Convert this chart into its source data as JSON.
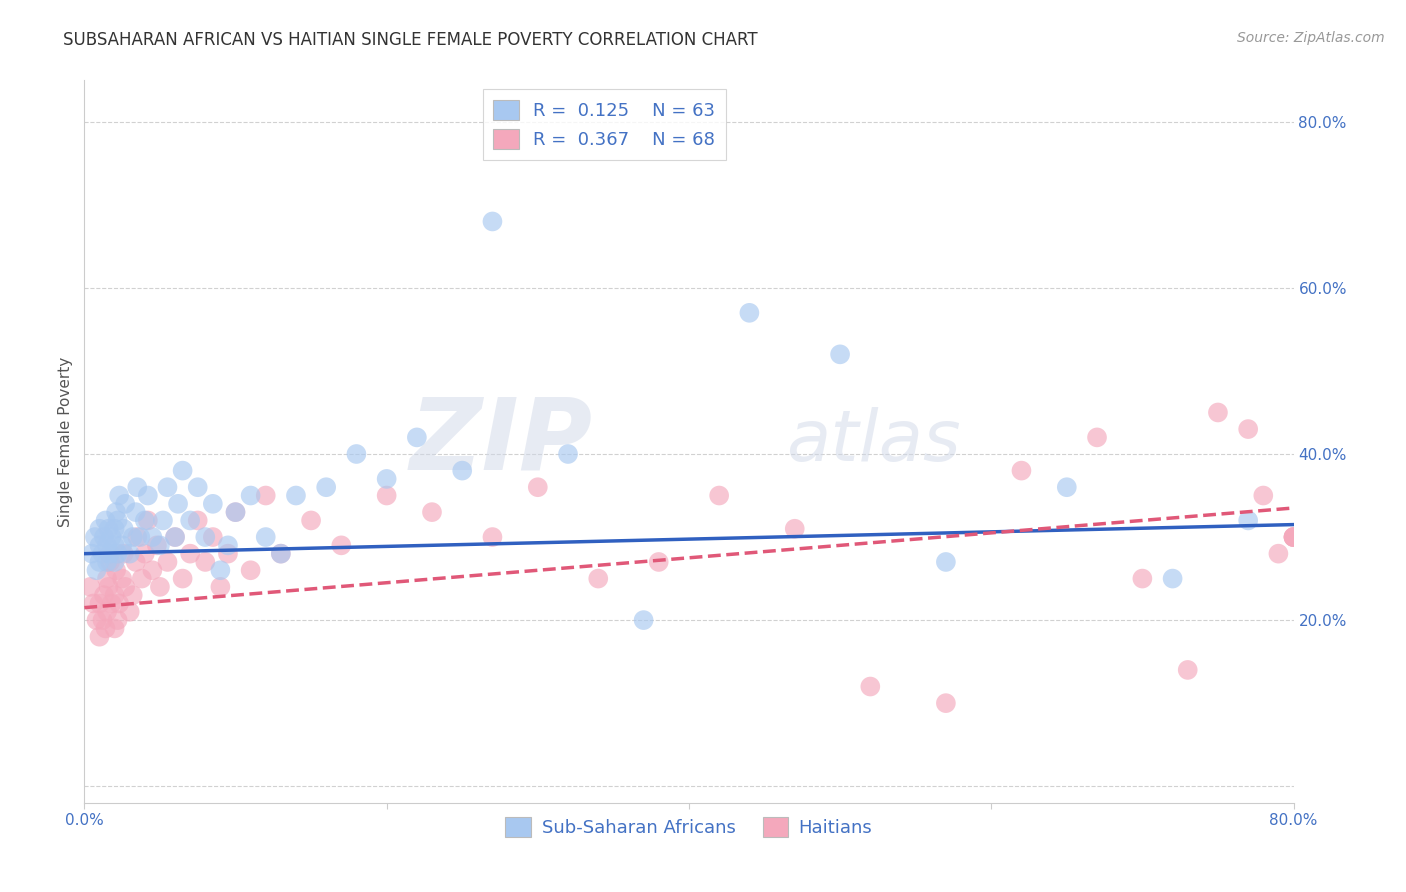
{
  "title": "SUBSAHARAN AFRICAN VS HAITIAN SINGLE FEMALE POVERTY CORRELATION CHART",
  "source": "Source: ZipAtlas.com",
  "ylabel": "Single Female Poverty",
  "watermark_zip": "ZIP",
  "watermark_atlas": "atlas",
  "blue_R": 0.125,
  "blue_N": 63,
  "pink_R": 0.367,
  "pink_N": 68,
  "blue_color": "#A8C8F0",
  "pink_color": "#F4A8BC",
  "blue_line_color": "#3060C0",
  "pink_line_color": "#E05878",
  "legend_label_blue": "Sub-Saharan Africans",
  "legend_label_pink": "Haitians",
  "xlim": [
    0.0,
    0.8
  ],
  "ylim": [
    -0.02,
    0.85
  ],
  "yticks": [
    0.0,
    0.2,
    0.4,
    0.6,
    0.8
  ],
  "xticks": [
    0.0,
    0.2,
    0.4,
    0.6,
    0.8
  ],
  "blue_x": [
    0.005,
    0.007,
    0.008,
    0.01,
    0.01,
    0.01,
    0.012,
    0.013,
    0.014,
    0.015,
    0.015,
    0.016,
    0.017,
    0.018,
    0.02,
    0.02,
    0.02,
    0.021,
    0.022,
    0.022,
    0.023,
    0.025,
    0.026,
    0.027,
    0.03,
    0.032,
    0.034,
    0.035,
    0.037,
    0.04,
    0.042,
    0.045,
    0.05,
    0.052,
    0.055,
    0.06,
    0.062,
    0.065,
    0.07,
    0.075,
    0.08,
    0.085,
    0.09,
    0.095,
    0.1,
    0.11,
    0.12,
    0.13,
    0.14,
    0.16,
    0.18,
    0.2,
    0.22,
    0.25,
    0.27,
    0.32,
    0.37,
    0.44,
    0.5,
    0.57,
    0.65,
    0.72,
    0.77
  ],
  "blue_y": [
    0.28,
    0.3,
    0.26,
    0.27,
    0.29,
    0.31,
    0.28,
    0.3,
    0.32,
    0.27,
    0.29,
    0.31,
    0.28,
    0.3,
    0.27,
    0.29,
    0.31,
    0.33,
    0.28,
    0.32,
    0.35,
    0.29,
    0.31,
    0.34,
    0.28,
    0.3,
    0.33,
    0.36,
    0.3,
    0.32,
    0.35,
    0.3,
    0.29,
    0.32,
    0.36,
    0.3,
    0.34,
    0.38,
    0.32,
    0.36,
    0.3,
    0.34,
    0.26,
    0.29,
    0.33,
    0.35,
    0.3,
    0.28,
    0.35,
    0.36,
    0.4,
    0.37,
    0.42,
    0.38,
    0.68,
    0.4,
    0.2,
    0.57,
    0.52,
    0.27,
    0.36,
    0.25,
    0.32
  ],
  "pink_x": [
    0.004,
    0.006,
    0.008,
    0.01,
    0.01,
    0.012,
    0.013,
    0.014,
    0.015,
    0.015,
    0.016,
    0.017,
    0.018,
    0.02,
    0.02,
    0.021,
    0.022,
    0.023,
    0.025,
    0.026,
    0.027,
    0.03,
    0.032,
    0.034,
    0.035,
    0.038,
    0.04,
    0.042,
    0.045,
    0.048,
    0.05,
    0.055,
    0.06,
    0.065,
    0.07,
    0.075,
    0.08,
    0.085,
    0.09,
    0.095,
    0.1,
    0.11,
    0.12,
    0.13,
    0.15,
    0.17,
    0.2,
    0.23,
    0.27,
    0.3,
    0.34,
    0.38,
    0.42,
    0.47,
    0.52,
    0.57,
    0.62,
    0.67,
    0.7,
    0.73,
    0.75,
    0.77,
    0.78,
    0.79,
    0.8,
    0.8,
    0.8,
    0.8
  ],
  "pink_y": [
    0.24,
    0.22,
    0.2,
    0.18,
    0.22,
    0.2,
    0.23,
    0.19,
    0.25,
    0.21,
    0.24,
    0.27,
    0.22,
    0.19,
    0.23,
    0.26,
    0.2,
    0.22,
    0.25,
    0.28,
    0.24,
    0.21,
    0.23,
    0.27,
    0.3,
    0.25,
    0.28,
    0.32,
    0.26,
    0.29,
    0.24,
    0.27,
    0.3,
    0.25,
    0.28,
    0.32,
    0.27,
    0.3,
    0.24,
    0.28,
    0.33,
    0.26,
    0.35,
    0.28,
    0.32,
    0.29,
    0.35,
    0.33,
    0.3,
    0.36,
    0.25,
    0.27,
    0.35,
    0.31,
    0.12,
    0.1,
    0.38,
    0.42,
    0.25,
    0.14,
    0.45,
    0.43,
    0.35,
    0.28,
    0.3,
    0.3,
    0.3,
    0.3
  ],
  "blue_trend_x": [
    0.0,
    0.8
  ],
  "blue_trend_y": [
    0.28,
    0.315
  ],
  "pink_trend_x": [
    0.0,
    0.8
  ],
  "pink_trend_y": [
    0.215,
    0.335
  ],
  "title_fontsize": 12,
  "label_fontsize": 11,
  "tick_fontsize": 11,
  "legend_fontsize": 13,
  "source_fontsize": 10
}
